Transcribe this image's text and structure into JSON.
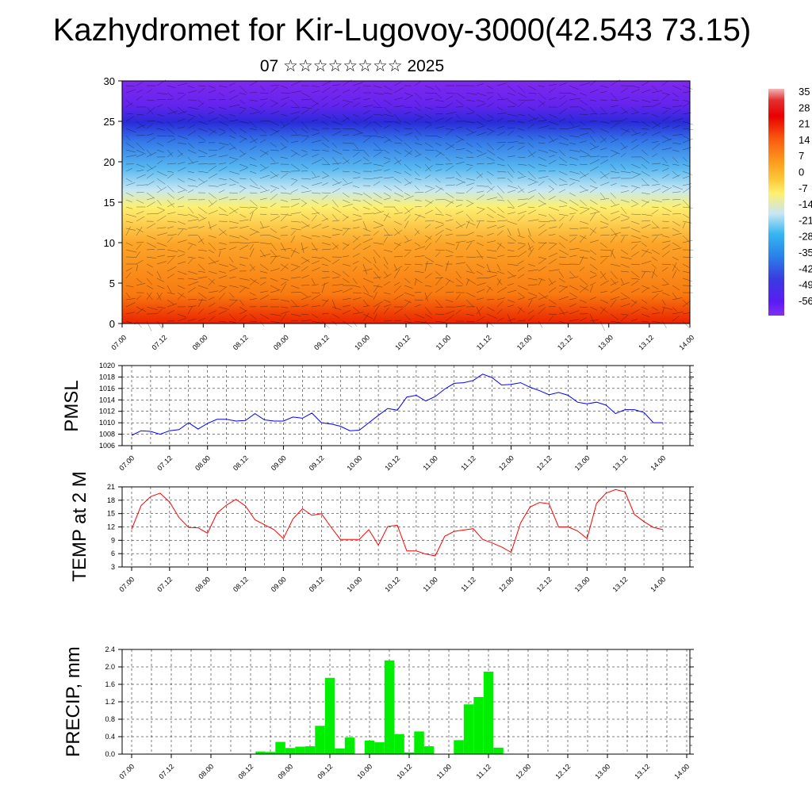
{
  "title": "Kazhydromet for Kir-Lugovoy-3000(42.543 73.15)",
  "subtitle": "07 ☆☆☆☆☆☆☆☆ 2025",
  "colors": {
    "pmsl": "#0000ff",
    "temp": "#ff0000",
    "precip": "#00ee00",
    "grid": "#000000"
  },
  "x_ticks": [
    "07.00",
    "07.12",
    "08.00",
    "08.12",
    "09.00",
    "09.12",
    "10.00",
    "10.12",
    "11.00",
    "11.12",
    "12.00",
    "12.12",
    "13.00",
    "13.12",
    "14.00"
  ],
  "colorbar_labels": [
    "35",
    "28",
    "21",
    "14",
    "7",
    "0",
    "-7",
    "-14",
    "-21",
    "-28",
    "-35",
    "-42",
    "-49",
    "-56"
  ],
  "chart_data": [
    {
      "type": "heatmap",
      "title": "",
      "xlabel": "",
      "ylabel": "",
      "x_range": [
        "07.00",
        "14.00"
      ],
      "ylim": [
        0,
        30
      ],
      "y_ticks": [
        0,
        5,
        10,
        15,
        20,
        25,
        30
      ],
      "colorbar": {
        "min": -56,
        "max": 35
      },
      "overlay": "wind vectors"
    },
    {
      "type": "line",
      "ylabel": "PMSL",
      "ylim": [
        1006,
        1020
      ],
      "y_ticks": [
        1006,
        1008,
        1010,
        1012,
        1014,
        1016,
        1018,
        1020
      ],
      "x_step_hours": 3,
      "series": [
        {
          "values": [
            1007.8,
            1008.6,
            1008.5,
            1008.0,
            1008.6,
            1008.8,
            1010.0,
            1008.9,
            1009.9,
            1010.6,
            1010.6,
            1010.3,
            1010.4,
            1011.6,
            1010.5,
            1010.3,
            1010.3,
            1011.0,
            1010.8,
            1011.7,
            1010.0,
            1009.8,
            1009.4,
            1008.6,
            1008.7,
            1010.0,
            1011.3,
            1012.5,
            1012.2,
            1014.5,
            1014.8,
            1013.8,
            1014.6,
            1015.9,
            1016.9,
            1017.0,
            1017.4,
            1018.5,
            1017.9,
            1016.6,
            1016.7,
            1017.0,
            1016.2,
            1015.6,
            1014.9,
            1015.3,
            1014.8,
            1013.6,
            1013.3,
            1013.6,
            1013.1,
            1011.6,
            1012.3,
            1012.3,
            1011.8,
            1010.0,
            1010.0
          ]
        }
      ]
    },
    {
      "type": "line",
      "ylabel": "TEMP at 2 M",
      "ylim": [
        3,
        21
      ],
      "y_ticks": [
        3,
        6,
        9,
        12,
        15,
        18,
        21
      ],
      "x_step_hours": 3,
      "series": [
        {
          "values": [
            11.5,
            16.8,
            18.8,
            19.6,
            17.6,
            14.1,
            11.9,
            11.8,
            10.6,
            15.1,
            16.9,
            18.2,
            16.7,
            13.6,
            12.5,
            11.4,
            9.4,
            13.8,
            16.1,
            14.6,
            15.0,
            12.0,
            9.2,
            9.2,
            9.2,
            11.4,
            7.9,
            12.1,
            12.4,
            6.6,
            6.6,
            5.9,
            5.5,
            9.9,
            11.0,
            11.3,
            11.6,
            9.2,
            8.4,
            7.5,
            6.3,
            12.9,
            16.5,
            17.5,
            17.2,
            12.0,
            12.0,
            11.1,
            9.4,
            17.3,
            19.6,
            20.4,
            19.9,
            14.8,
            13.2,
            11.9,
            11.4
          ]
        }
      ]
    },
    {
      "type": "bar",
      "ylabel": "PRECIP, mm",
      "ylim": [
        0,
        2.4
      ],
      "y_ticks": [
        "0.0",
        "0.4",
        "0.8",
        "1.2",
        "1.6",
        "2.0",
        "2.4"
      ],
      "x_step_hours": 3,
      "values": [
        0,
        0,
        0,
        0,
        0,
        0,
        0,
        0,
        0,
        0,
        0,
        0,
        0,
        0.06,
        0.05,
        0.28,
        0.14,
        0.17,
        0.18,
        0.65,
        1.75,
        0.13,
        0.38,
        0,
        0.31,
        0.27,
        2.15,
        0.46,
        0.04,
        0.52,
        0.18,
        0,
        0,
        0.32,
        1.14,
        1.31,
        1.89,
        0.15,
        0,
        0,
        0,
        0,
        0,
        0,
        0,
        0,
        0,
        0,
        0,
        0,
        0,
        0,
        0,
        0,
        0,
        0,
        0
      ]
    }
  ]
}
